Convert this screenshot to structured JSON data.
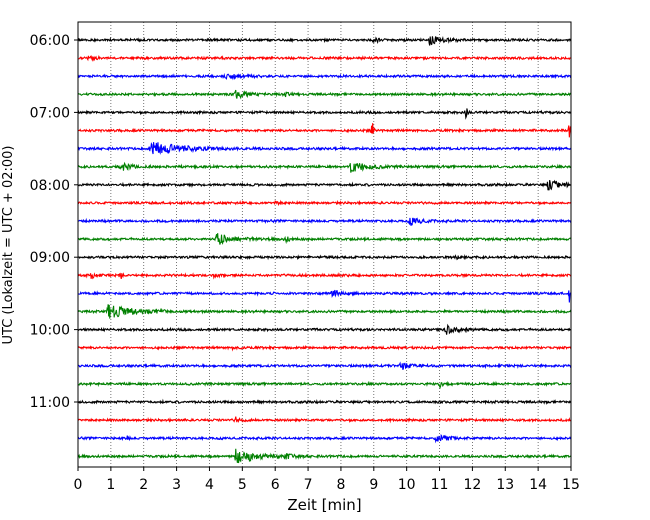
{
  "chart_data": {
    "type": "line",
    "subtype": "helicorder",
    "xlabel": "Zeit  [min]",
    "ylabel": "UTC (Lokalzeit = UTC + 02:00)",
    "xlim": [
      0,
      15
    ],
    "x_ticks": [
      0,
      1,
      2,
      3,
      4,
      5,
      6,
      7,
      8,
      9,
      10,
      11,
      12,
      13,
      14,
      15
    ],
    "x_tick_labels": [
      "0",
      "1",
      "2",
      "3",
      "4",
      "5",
      "6",
      "7",
      "8",
      "9",
      "10",
      "11",
      "12",
      "13",
      "14",
      "15"
    ],
    "y_tick_labels": [
      "06:00",
      "07:00",
      "08:00",
      "09:00",
      "10:00",
      "11:00"
    ],
    "y_ticks_trace_index": [
      0,
      4,
      8,
      12,
      16,
      20
    ],
    "trace_colors": [
      "#000000",
      "#ff0000",
      "#0000ff",
      "#008000"
    ],
    "grid": "vertical dotted",
    "traces": [
      {
        "start": "06:00",
        "color": "#000000",
        "events": [
          {
            "t": 9.0,
            "amp": 0.35,
            "dur": 0.3
          },
          {
            "t": 10.7,
            "amp": 0.5,
            "dur": 0.8
          }
        ]
      },
      {
        "start": "06:15",
        "color": "#ff0000",
        "events": [
          {
            "t": 0.3,
            "amp": 0.3,
            "dur": 0.4
          }
        ]
      },
      {
        "start": "06:30",
        "color": "#0000ff",
        "events": [
          {
            "t": 4.5,
            "amp": 0.35,
            "dur": 0.8
          }
        ]
      },
      {
        "start": "06:45",
        "color": "#008000",
        "events": [
          {
            "t": 4.8,
            "amp": 0.45,
            "dur": 0.6
          },
          {
            "t": 6.3,
            "amp": 0.2,
            "dur": 0.3
          }
        ]
      },
      {
        "start": "07:00",
        "color": "#000000",
        "events": [
          {
            "t": 11.8,
            "amp": 1.0,
            "dur": 0.08
          }
        ]
      },
      {
        "start": "07:15",
        "color": "#ff0000",
        "events": [
          {
            "t": 8.95,
            "amp": 1.5,
            "dur": 0.06
          },
          {
            "t": 14.95,
            "amp": 1.5,
            "dur": 0.06
          }
        ]
      },
      {
        "start": "07:30",
        "color": "#0000ff",
        "events": [
          {
            "t": 2.2,
            "amp": 0.9,
            "dur": 1.8
          }
        ]
      },
      {
        "start": "07:45",
        "color": "#008000",
        "events": [
          {
            "t": 1.3,
            "amp": 0.45,
            "dur": 0.6
          },
          {
            "t": 8.3,
            "amp": 0.7,
            "dur": 0.9
          }
        ]
      },
      {
        "start": "08:00",
        "color": "#000000",
        "events": [
          {
            "t": 14.3,
            "amp": 0.6,
            "dur": 0.8
          }
        ]
      },
      {
        "start": "08:15",
        "color": "#ff0000",
        "events": [
          {
            "t": 6.0,
            "amp": 0.15,
            "dur": 0.3
          }
        ]
      },
      {
        "start": "08:30",
        "color": "#0000ff",
        "events": [
          {
            "t": 10.1,
            "amp": 0.45,
            "dur": 0.6
          }
        ]
      },
      {
        "start": "08:45",
        "color": "#008000",
        "events": [
          {
            "t": 4.2,
            "amp": 0.7,
            "dur": 1.0
          },
          {
            "t": 6.3,
            "amp": 0.3,
            "dur": 0.3
          }
        ]
      },
      {
        "start": "09:00",
        "color": "#000000",
        "events": [
          {
            "t": 11.5,
            "amp": 0.15,
            "dur": 0.3
          }
        ]
      },
      {
        "start": "09:15",
        "color": "#ff0000",
        "events": [
          {
            "t": 0.4,
            "amp": 0.35,
            "dur": 0.3
          },
          {
            "t": 1.3,
            "amp": 0.7,
            "dur": 0.06
          },
          {
            "t": 4.1,
            "amp": 0.2,
            "dur": 0.3
          }
        ]
      },
      {
        "start": "09:30",
        "color": "#0000ff",
        "events": [
          {
            "t": 7.7,
            "amp": 0.45,
            "dur": 0.5
          },
          {
            "t": 14.95,
            "amp": 0.9,
            "dur": 0.08
          }
        ]
      },
      {
        "start": "09:45",
        "color": "#008000",
        "events": [
          {
            "t": 0.9,
            "amp": 0.8,
            "dur": 1.4
          },
          {
            "t": 2.4,
            "amp": 0.25,
            "dur": 0.3
          }
        ]
      },
      {
        "start": "10:00",
        "color": "#000000",
        "events": [
          {
            "t": 11.2,
            "amp": 0.5,
            "dur": 0.7
          }
        ]
      },
      {
        "start": "10:15",
        "color": "#ff0000",
        "events": [
          {
            "t": 4.7,
            "amp": 0.15,
            "dur": 0.3
          }
        ]
      },
      {
        "start": "10:30",
        "color": "#0000ff",
        "events": [
          {
            "t": 9.8,
            "amp": 0.5,
            "dur": 0.5
          }
        ]
      },
      {
        "start": "10:45",
        "color": "#008000",
        "events": [
          {
            "t": 11.0,
            "amp": 0.4,
            "dur": 0.2
          }
        ]
      },
      {
        "start": "11:00",
        "color": "#000000",
        "events": []
      },
      {
        "start": "11:15",
        "color": "#ff0000",
        "events": [
          {
            "t": 4.8,
            "amp": 0.3,
            "dur": 0.3
          }
        ]
      },
      {
        "start": "11:30",
        "color": "#0000ff",
        "events": [
          {
            "t": 1.5,
            "amp": 0.25,
            "dur": 0.1
          },
          {
            "t": 10.9,
            "amp": 0.5,
            "dur": 0.7
          }
        ]
      },
      {
        "start": "11:45",
        "color": "#008000",
        "events": [
          {
            "t": 4.8,
            "amp": 0.8,
            "dur": 1.2
          },
          {
            "t": 6.3,
            "amp": 0.3,
            "dur": 0.4
          }
        ]
      }
    ]
  }
}
